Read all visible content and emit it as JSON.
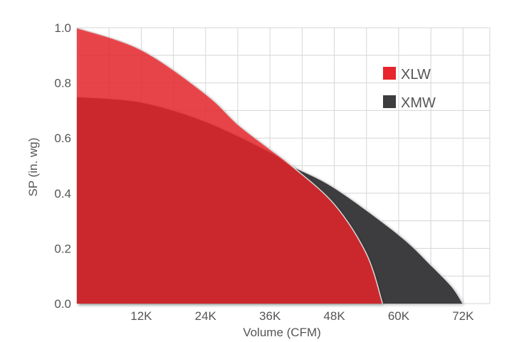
{
  "chart_data": {
    "type": "area",
    "title": "",
    "xlabel": "Volume (CFM)",
    "ylabel": "SP (in. wg)",
    "xlim": [
      0,
      77000
    ],
    "ylim": [
      0,
      1.0
    ],
    "x_ticks": [
      0,
      12000,
      24000,
      36000,
      48000,
      60000,
      72000
    ],
    "x_tick_labels": [
      "",
      "12K",
      "24K",
      "36K",
      "48K",
      "60K",
      "72K"
    ],
    "y_ticks": [
      0,
      0.2,
      0.4,
      0.6,
      0.8,
      1.0
    ],
    "y_tick_labels": [
      "0.0",
      "0.2",
      "0.4",
      "0.6",
      "0.8",
      "1.0"
    ],
    "grid": true,
    "legend_position": "top-right",
    "series": [
      {
        "name": "XMW",
        "color": "#3d3d3f",
        "x": [
          0,
          12000,
          24000,
          36000,
          40000,
          48000,
          60000,
          66000,
          70000,
          72000
        ],
        "y": [
          0.75,
          0.73,
          0.66,
          0.55,
          0.5,
          0.42,
          0.25,
          0.14,
          0.06,
          0.0
        ]
      },
      {
        "name": "XLW",
        "color": "#e8242c",
        "x": [
          0,
          12000,
          24000,
          30000,
          36000,
          40000,
          48000,
          54000,
          57000
        ],
        "y": [
          1.0,
          0.92,
          0.76,
          0.65,
          0.56,
          0.5,
          0.36,
          0.18,
          0.0
        ]
      }
    ]
  }
}
